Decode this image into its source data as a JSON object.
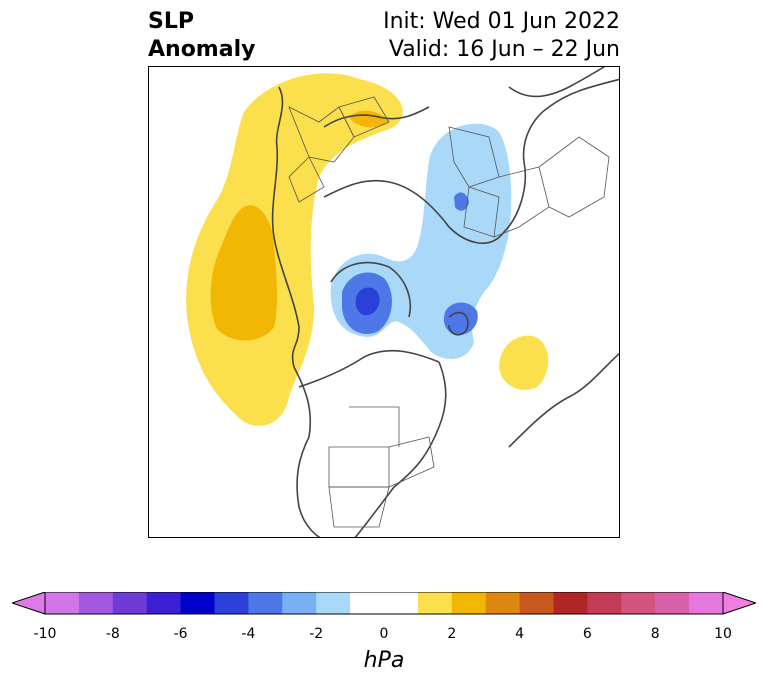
{
  "title": {
    "left_line1": "SLP",
    "left_line2": "Anomaly",
    "right_line1": "Init: Wed 01 Jun 2022",
    "right_line2": "Valid: 16 Jun – 22 Jun"
  },
  "colorbar": {
    "units": "hPa",
    "ticks": [
      "-10",
      "-8",
      "-6",
      "-4",
      "-2",
      "0",
      "2",
      "4",
      "6",
      "8",
      "10"
    ],
    "colors": [
      "#d275e6",
      "#a259e0",
      "#6e3bd6",
      "#3d1fd3",
      "#0000cc",
      "#2b3fd9",
      "#4e78e8",
      "#79b0f3",
      "#aad8f9",
      "#ffffff",
      "#ffffff",
      "#fcdf4d",
      "#f2b705",
      "#dd8810",
      "#c8591c",
      "#b02525",
      "#c23c55",
      "#d25581",
      "#d862a9",
      "#e678dd"
    ],
    "extend_left_color": "#dc7ae8",
    "extend_right_color": "#ee7ee0"
  },
  "map": {
    "projection": "north-polar-stereographic",
    "features": [
      "coastlines",
      "country-borders",
      "us-state-borders"
    ]
  }
}
